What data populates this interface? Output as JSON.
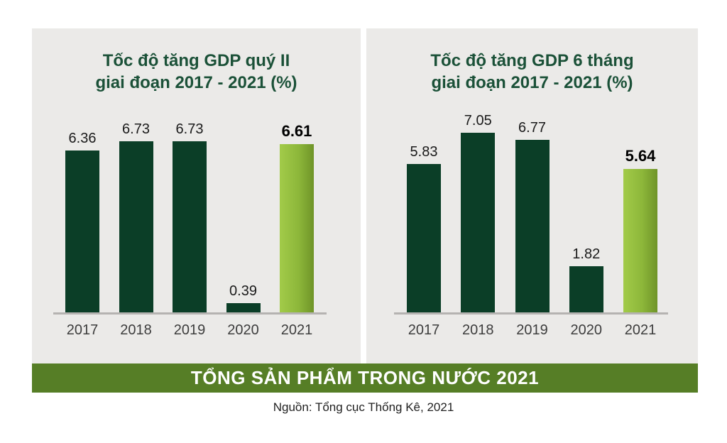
{
  "banner": {
    "label": "TỔNG SẢN PHẨM TRONG NƯỚC 2021"
  },
  "source": {
    "label": "Nguồn: Tổng cục Thống Kê, 2021"
  },
  "colors": {
    "panel_background": "#ebeae8",
    "bar_dark_green": "#0b3e27",
    "highlight_gradient_start": "#a2cb49",
    "highlight_gradient_mid": "#8db73a",
    "highlight_gradient_end": "#6f9428",
    "banner_background": "#567e26",
    "banner_text": "#ffffff",
    "title_green": "#1b5138",
    "axis_line": "#b5b3b1",
    "value_label": "#1a1a1a",
    "year_label": "#3d3d3d"
  },
  "chart_data": [
    {
      "type": "bar",
      "title": "Tốc độ tăng GDP quý II",
      "subtitle": "giai đoạn 2017 - 2021 (%)",
      "categories": [
        "2017",
        "2018",
        "2019",
        "2020",
        "2021"
      ],
      "values": [
        6.36,
        6.73,
        6.73,
        0.39,
        6.61
      ],
      "value_labels": [
        "6.36",
        "6.73",
        "6.73",
        "0.39",
        "6.61"
      ],
      "highlight_index": 4,
      "xlabel": "",
      "ylabel": "",
      "ylim": [
        0,
        7.5
      ],
      "grid": false,
      "legend": "none",
      "value_labels_shown": true
    },
    {
      "type": "bar",
      "title": "Tốc độ tăng GDP 6 tháng",
      "subtitle": "giai đoạn 2017 - 2021 (%)",
      "categories": [
        "2017",
        "2018",
        "2019",
        "2020",
        "2021"
      ],
      "values": [
        5.83,
        7.05,
        6.77,
        1.82,
        5.64
      ],
      "value_labels": [
        "5.83",
        "7.05",
        "6.77",
        "1.82",
        "5.64"
      ],
      "highlight_index": 4,
      "xlabel": "",
      "ylabel": "",
      "ylim": [
        0,
        7.5
      ],
      "grid": false,
      "legend": "none",
      "value_labels_shown": true
    }
  ]
}
